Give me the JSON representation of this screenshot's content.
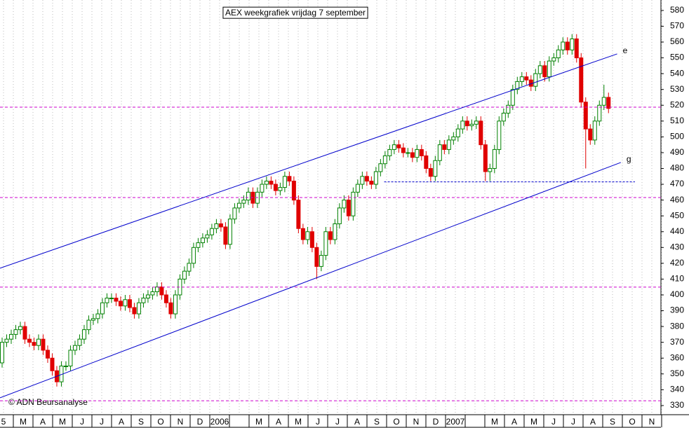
{
  "chart_data": {
    "type": "candlestick",
    "title": "AEX weekgrafiek vrijdag 7 september",
    "annotation": "© ADN Beursanalyse",
    "categories": [
      "5",
      "M",
      "A",
      "M",
      "J",
      "J",
      "A",
      "S",
      "O",
      "N",
      "D",
      "2006",
      null,
      "M",
      "A",
      "M",
      "J",
      "J",
      "A",
      "S",
      "O",
      "N",
      "D",
      "2007",
      null,
      "M",
      "A",
      "M",
      "J",
      "J",
      "A",
      "S",
      "O",
      "N"
    ],
    "up_color": "#008000",
    "down_color": "#e00000",
    "xlim": [
      -0.46,
      144.5
    ],
    "ylim": [
      324.2,
      586.6
    ],
    "yticks": [
      330,
      340,
      350,
      360,
      370,
      380,
      390,
      400,
      410,
      420,
      430,
      440,
      450,
      460,
      470,
      480,
      490,
      500,
      510,
      520,
      530,
      540,
      550,
      560,
      570,
      580
    ],
    "open": [
      357,
      370,
      372,
      375,
      378,
      380,
      372,
      370,
      368,
      372,
      365,
      360,
      352,
      345,
      355,
      355,
      365,
      368,
      372,
      378,
      384,
      385,
      388,
      395,
      398,
      398,
      396,
      393,
      397,
      392,
      388,
      395,
      398,
      400,
      402,
      405,
      400,
      395,
      388,
      400,
      410,
      415,
      420,
      430,
      433,
      436,
      438,
      442,
      445,
      443,
      432,
      448,
      455,
      458,
      460,
      465,
      458,
      465,
      470,
      472,
      470,
      466,
      468,
      475,
      472,
      460,
      442,
      435,
      440,
      430,
      418,
      425,
      440,
      435,
      445,
      455,
      460,
      450,
      465,
      470,
      475,
      472,
      470,
      478,
      483,
      488,
      492,
      495,
      493,
      490,
      490,
      487,
      492,
      488,
      480,
      475,
      485,
      495,
      492,
      498,
      500,
      505,
      510,
      507,
      508,
      510,
      495,
      478,
      480,
      492,
      510,
      515,
      520,
      530,
      535,
      538,
      536,
      532,
      540,
      545,
      538,
      548,
      550,
      555,
      560,
      555,
      562,
      550,
      522,
      505,
      498,
      510,
      520,
      525
    ],
    "high": [
      373,
      375,
      378,
      381,
      383,
      383,
      375,
      373,
      375,
      375,
      368,
      363,
      355,
      358,
      358,
      368,
      371,
      375,
      381,
      387,
      388,
      391,
      398,
      401,
      401,
      401,
      399,
      400,
      400,
      395,
      398,
      401,
      403,
      405,
      408,
      408,
      403,
      398,
      403,
      413,
      418,
      423,
      433,
      436,
      439,
      441,
      445,
      448,
      448,
      446,
      451,
      458,
      461,
      463,
      468,
      468,
      468,
      473,
      475,
      475,
      473,
      471,
      478,
      478,
      475,
      463,
      445,
      443,
      443,
      433,
      428,
      443,
      443,
      448,
      458,
      463,
      463,
      468,
      473,
      478,
      478,
      475,
      481,
      486,
      491,
      495,
      498,
      498,
      496,
      493,
      493,
      495,
      495,
      491,
      483,
      488,
      498,
      498,
      501,
      503,
      508,
      513,
      513,
      511,
      513,
      513,
      498,
      483,
      495,
      513,
      518,
      523,
      533,
      538,
      541,
      541,
      539,
      543,
      548,
      548,
      551,
      553,
      558,
      563,
      563,
      565,
      565,
      553,
      525,
      508,
      513,
      523,
      533,
      528
    ],
    "low": [
      354,
      367,
      369,
      372,
      375,
      369,
      367,
      365,
      365,
      362,
      357,
      349,
      342,
      342,
      352,
      352,
      362,
      365,
      369,
      375,
      381,
      382,
      385,
      392,
      395,
      393,
      390,
      390,
      389,
      385,
      385,
      392,
      395,
      397,
      399,
      397,
      392,
      385,
      385,
      397,
      407,
      412,
      417,
      427,
      430,
      433,
      435,
      439,
      440,
      429,
      429,
      445,
      452,
      455,
      457,
      455,
      455,
      462,
      467,
      467,
      463,
      463,
      465,
      469,
      457,
      439,
      432,
      432,
      427,
      410,
      415,
      422,
      432,
      432,
      442,
      452,
      447,
      447,
      462,
      467,
      469,
      467,
      467,
      475,
      480,
      485,
      489,
      490,
      487,
      487,
      484,
      484,
      485,
      477,
      472,
      472,
      482,
      489,
      489,
      495,
      497,
      502,
      504,
      504,
      505,
      492,
      472,
      472,
      477,
      489,
      507,
      512,
      517,
      527,
      532,
      533,
      529,
      529,
      537,
      535,
      535,
      545,
      547,
      552,
      552,
      552,
      547,
      519,
      480,
      495,
      495,
      507,
      517,
      515
    ],
    "close": [
      370,
      372,
      375,
      378,
      380,
      372,
      370,
      368,
      372,
      365,
      360,
      352,
      345,
      355,
      355,
      365,
      368,
      372,
      378,
      384,
      385,
      388,
      395,
      398,
      398,
      396,
      393,
      397,
      392,
      388,
      395,
      398,
      400,
      402,
      405,
      400,
      395,
      388,
      400,
      410,
      415,
      420,
      430,
      433,
      436,
      438,
      442,
      445,
      443,
      432,
      448,
      455,
      458,
      460,
      465,
      458,
      465,
      470,
      472,
      470,
      466,
      468,
      475,
      472,
      460,
      442,
      435,
      440,
      430,
      418,
      425,
      440,
      435,
      445,
      455,
      460,
      450,
      465,
      470,
      475,
      472,
      470,
      478,
      483,
      488,
      492,
      495,
      493,
      490,
      490,
      487,
      492,
      488,
      480,
      475,
      485,
      495,
      492,
      498,
      500,
      505,
      510,
      507,
      508,
      510,
      495,
      478,
      480,
      492,
      510,
      515,
      520,
      530,
      535,
      538,
      536,
      532,
      540,
      545,
      538,
      548,
      550,
      555,
      560,
      555,
      562,
      550,
      522,
      505,
      498,
      510,
      520,
      525,
      518
    ],
    "channels": [
      {
        "label": "e",
        "color": "#0000cc",
        "x": [
          -0.46,
          134.9
        ],
        "values": [
          416.9,
          552.5
        ]
      },
      {
        "label": "g",
        "color": "#0000cc",
        "x": [
          -0.46,
          135.7
        ],
        "values": [
          334.9,
          483.8
        ]
      }
    ],
    "hlines": [
      {
        "color": "#cc00cc",
        "value": 518.8
      },
      {
        "color": "#cc00cc",
        "value": 461.6
      },
      {
        "color": "#cc00cc",
        "value": 404.9
      },
      {
        "color": "#cc00cc",
        "value": 333
      }
    ],
    "support": {
      "color": "#0000cc",
      "value": 471.5,
      "x": [
        83.8,
        138.8
      ]
    }
  }
}
